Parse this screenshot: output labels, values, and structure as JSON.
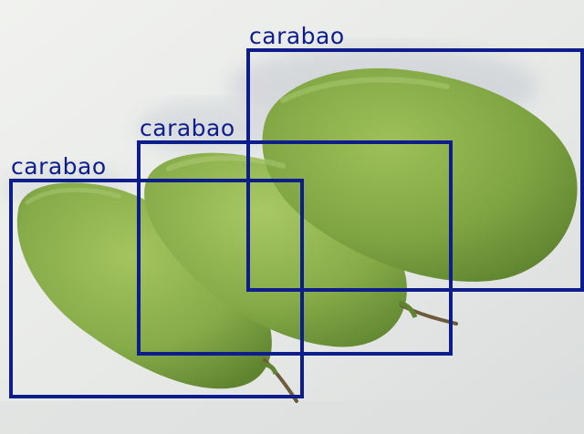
{
  "image": {
    "subject": "three green carabao mangoes on a white surface",
    "colors": {
      "background": "#e9ebe8",
      "mango_light": "#9cbd59",
      "mango_mid": "#7fa543",
      "mango_dark": "#5f8430",
      "shadow": "#c7ccd2",
      "stem": "#6b5a3c",
      "box": "#0d1d8c"
    }
  },
  "detections": [
    {
      "label": "carabao"
    },
    {
      "label": "carabao"
    },
    {
      "label": "carabao"
    }
  ]
}
